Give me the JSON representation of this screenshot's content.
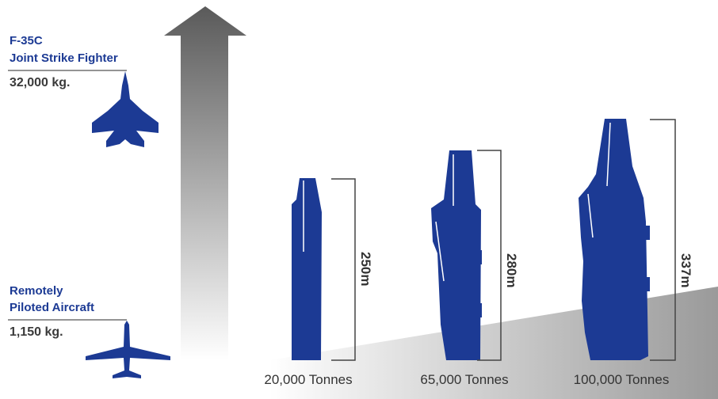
{
  "aircraft": [
    {
      "name_lines": [
        "F-35C",
        "Joint Strike Fighter"
      ],
      "weight": "32,000 kg."
    },
    {
      "name_lines": [
        "Remotely",
        "Piloted Aircraft"
      ],
      "weight": "1,150 kg."
    }
  ],
  "ships": [
    {
      "length": "250m",
      "displacement": "20,000 Tonnes"
    },
    {
      "length": "280m",
      "displacement": "65,000 Tonnes"
    },
    {
      "length": "337m",
      "displacement": "100,000 Tonnes"
    }
  ]
}
